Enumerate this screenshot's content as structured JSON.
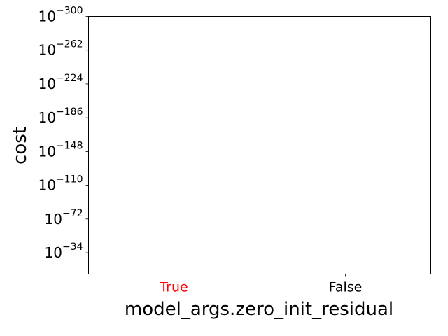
{
  "chart_data": {
    "type": "bar",
    "title": "",
    "xlabel": "model_args.zero_init_residual",
    "ylabel": "cost",
    "categories": [
      "True",
      "False"
    ],
    "category_colors": [
      "#ff0000",
      "#000000"
    ],
    "series": [
      {
        "values": [
          null,
          null
        ]
      }
    ],
    "yscale": "log",
    "ylim_exponents": [
      -10,
      -300
    ],
    "y_ticks": [
      {
        "base": "10",
        "exp": "−34",
        "value": -34
      },
      {
        "base": "10",
        "exp": "−72",
        "value": -72
      },
      {
        "base": "10",
        "exp": "−110",
        "value": -110
      },
      {
        "base": "10",
        "exp": "−148",
        "value": -148
      },
      {
        "base": "10",
        "exp": "−186",
        "value": -186
      },
      {
        "base": "10",
        "exp": "−224",
        "value": -224
      },
      {
        "base": "10",
        "exp": "−262",
        "value": -262
      },
      {
        "base": "10",
        "exp": "−300",
        "value": -300
      }
    ],
    "grid": false,
    "legend": "none"
  }
}
